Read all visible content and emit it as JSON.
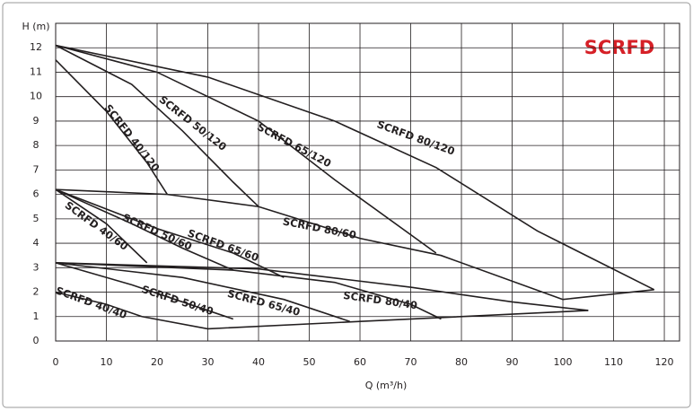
{
  "chart_data": {
    "type": "line",
    "title": "SCRFD",
    "x_label": "Q (m³/h)",
    "y_label": "H (m)",
    "xlim": [
      0,
      123
    ],
    "ylim": [
      0,
      13
    ],
    "xticks": [
      0,
      10,
      20,
      30,
      40,
      50,
      60,
      70,
      80,
      90,
      100,
      110,
      120
    ],
    "yticks": [
      0,
      1,
      2,
      3,
      4,
      5,
      6,
      7,
      8,
      9,
      10,
      11,
      12
    ],
    "grid": true,
    "series": [
      {
        "name": "SCRFD 40/120",
        "color": "#231f20",
        "x": [
          0,
          10,
          18,
          22
        ],
        "values": [
          11.5,
          9.4,
          7.3,
          6.0
        ]
      },
      {
        "name": "SCRFD 50/120",
        "color": "#231f20",
        "x": [
          0,
          15,
          25,
          35,
          40
        ],
        "values": [
          12.1,
          10.5,
          8.6,
          6.5,
          5.5
        ]
      },
      {
        "name": "SCRFD 65/120",
        "color": "#231f20",
        "x": [
          0,
          20,
          40,
          55,
          75
        ],
        "values": [
          12.1,
          11.0,
          9.0,
          6.6,
          3.6
        ]
      },
      {
        "name": "SCRFD 80/120",
        "color": "#231f20",
        "x": [
          0,
          30,
          55,
          75,
          95,
          118
        ],
        "values": [
          12.1,
          10.8,
          9.0,
          7.1,
          4.5,
          2.1
        ]
      },
      {
        "name": "SCRFD 40/60",
        "color": "#231f20",
        "x": [
          0,
          10,
          18
        ],
        "values": [
          6.2,
          4.8,
          3.2
        ]
      },
      {
        "name": "SCRFD 50/60",
        "color": "#231f20",
        "x": [
          0,
          15,
          25,
          35
        ],
        "values": [
          6.2,
          4.8,
          3.8,
          2.9
        ]
      },
      {
        "name": "SCRFD 65/60",
        "color": "#231f20",
        "x": [
          0,
          20,
          35,
          45
        ],
        "values": [
          6.2,
          4.6,
          3.6,
          2.6
        ]
      },
      {
        "name": "SCRFD 80/60",
        "color": "#231f20",
        "x": [
          0,
          22,
          40,
          60,
          76,
          100
        ],
        "values": [
          6.2,
          6.0,
          5.5,
          4.2,
          3.5,
          1.7
        ]
      },
      {
        "name": "SCRFD 40/40",
        "color": "#231f20",
        "x": [
          0,
          10,
          17
        ],
        "values": [
          2.0,
          1.5,
          1.0
        ]
      },
      {
        "name": "SCRFD 50/40",
        "color": "#231f20",
        "x": [
          0,
          15,
          25,
          35
        ],
        "values": [
          3.2,
          2.3,
          1.6,
          0.9
        ]
      },
      {
        "name": "SCRFD 65/40",
        "color": "#231f20",
        "x": [
          0,
          25,
          45,
          58
        ],
        "values": [
          3.2,
          2.6,
          1.7,
          0.8
        ]
      },
      {
        "name": "SCRFD 80/40",
        "color": "#231f20",
        "x": [
          0,
          35,
          55,
          70,
          76
        ],
        "values": [
          3.2,
          2.9,
          2.4,
          1.5,
          0.9
        ]
      },
      {
        "color": "#231f20",
        "x": [
          0,
          40,
          70,
          90,
          105
        ],
        "values": [
          3.2,
          2.95,
          2.2,
          1.6,
          1.25
        ]
      },
      {
        "color": "#231f20",
        "x": [
          17,
          30,
          60,
          105
        ],
        "values": [
          1.0,
          0.5,
          0.8,
          1.25
        ]
      },
      {
        "color": "#231f20",
        "x": [
          100,
          118
        ],
        "values": [
          1.7,
          2.1
        ]
      }
    ]
  }
}
